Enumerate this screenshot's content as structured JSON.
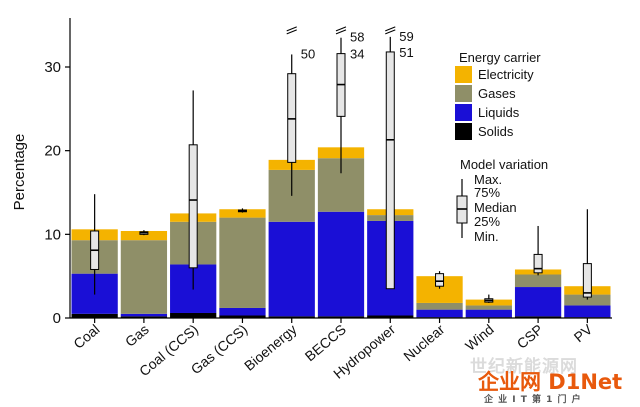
{
  "chart_data": {
    "type": "bar",
    "stacked": true,
    "ylabel": "Percentage",
    "ylim": [
      0,
      36
    ],
    "yticks": [
      0,
      10,
      20,
      30
    ],
    "categories": [
      "Coal",
      "Gas",
      "Coal (CCS)",
      "Gas (CCS)",
      "Bioenergy",
      "BECCS",
      "Hydropower",
      "Nuclear",
      "Wind",
      "CSP",
      "PV"
    ],
    "series": [
      {
        "name": "Solids",
        "color": "#000000",
        "values": [
          0.5,
          0.2,
          0.6,
          0.3,
          0.2,
          0.2,
          0.3,
          0.1,
          0.1,
          0.2,
          0.1
        ]
      },
      {
        "name": "Liquids",
        "color": "#1a0fd6",
        "values": [
          4.8,
          0.3,
          5.8,
          0.9,
          11.3,
          12.5,
          11.3,
          0.9,
          0.9,
          3.5,
          1.4
        ]
      },
      {
        "name": "Gases",
        "color": "#8f8f68",
        "values": [
          4.0,
          8.8,
          5.1,
          10.8,
          6.2,
          6.4,
          0.7,
          0.8,
          0.5,
          1.5,
          1.3
        ]
      },
      {
        "name": "Electricity",
        "color": "#f4b300",
        "values": [
          1.3,
          1.1,
          1.0,
          1.0,
          1.2,
          1.3,
          0.7,
          3.2,
          0.7,
          0.6,
          1.0
        ]
      }
    ],
    "model_variation": [
      {
        "min": 2.8,
        "q1": 5.8,
        "median": 8.1,
        "q3": 10.4,
        "max": 14.8
      },
      {
        "min": 9.9,
        "q1": 10.0,
        "median": 10.2,
        "q3": 10.3,
        "max": 10.5
      },
      {
        "min": 3.4,
        "q1": 6.0,
        "median": 14.1,
        "q3": 20.7,
        "max": 27.2
      },
      {
        "min": 12.6,
        "q1": 12.7,
        "median": 12.8,
        "q3": 12.9,
        "max": 13.1
      },
      {
        "min": 14.6,
        "q1": 18.6,
        "median": 23.8,
        "q3": 29.2,
        "max": 31.5,
        "max_label": "50"
      },
      {
        "min": 17.3,
        "q1": 24.1,
        "median": 27.9,
        "q3": 31.6,
        "max": 33.5,
        "max_label": "58",
        "q3_label": "34"
      },
      {
        "min": 3.5,
        "q1": 3.5,
        "median": 21.3,
        "q3": 31.8,
        "max": 33.6,
        "max_label": "59",
        "q3_label": "51"
      },
      {
        "min": 3.5,
        "q1": 3.8,
        "median": 4.4,
        "q3": 5.3,
        "max": 5.6
      },
      {
        "min": 1.8,
        "q1": 1.9,
        "median": 2.1,
        "q3": 2.3,
        "max": 2.8
      },
      {
        "min": 5.1,
        "q1": 5.4,
        "median": 5.9,
        "q3": 7.6,
        "max": 11.0
      },
      {
        "min": 2.2,
        "q1": 2.5,
        "median": 3.0,
        "q3": 6.5,
        "max": 13.0
      }
    ],
    "legend": {
      "title": "Energy carrier",
      "placement": "top-right",
      "items": [
        "Electricity",
        "Gases",
        "Liquids",
        "Solids"
      ]
    },
    "box_legend": {
      "title": "Model variation",
      "labels": [
        "Max.",
        "75%",
        "Median",
        "25%",
        "Min."
      ]
    },
    "grid": false
  },
  "watermark": {
    "line1": "世纪新能源网",
    "logo": "企业网 D1Net",
    "line2": "企 业 I T 第 1 门 户"
  }
}
